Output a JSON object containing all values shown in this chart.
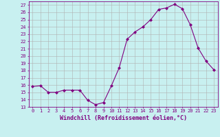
{
  "x": [
    0,
    1,
    2,
    3,
    4,
    5,
    6,
    7,
    8,
    9,
    10,
    11,
    12,
    13,
    14,
    15,
    16,
    17,
    18,
    19,
    20,
    21,
    22,
    23
  ],
  "y": [
    15.8,
    15.9,
    15.0,
    15.0,
    15.3,
    15.3,
    15.3,
    13.9,
    13.3,
    13.6,
    15.9,
    18.4,
    22.3,
    23.3,
    24.0,
    25.0,
    26.4,
    26.6,
    27.1,
    26.5,
    24.3,
    21.1,
    19.3,
    18.1
  ],
  "line_color": "#800080",
  "marker": "D",
  "marker_size": 2.0,
  "bg_color": "#c8f0f0",
  "grid_color": "#b0b0b0",
  "xlabel": "Windchill (Refroidissement éolien,°C)",
  "xlim": [
    -0.5,
    23.5
  ],
  "ylim": [
    13,
    27.5
  ],
  "yticks": [
    13,
    14,
    15,
    16,
    17,
    18,
    19,
    20,
    21,
    22,
    23,
    24,
    25,
    26,
    27
  ],
  "xticks": [
    0,
    1,
    2,
    3,
    4,
    5,
    6,
    7,
    8,
    9,
    10,
    11,
    12,
    13,
    14,
    15,
    16,
    17,
    18,
    19,
    20,
    21,
    22,
    23
  ],
  "tick_fontsize": 5.0,
  "xlabel_fontsize": 6.0,
  "font_color": "#800080"
}
